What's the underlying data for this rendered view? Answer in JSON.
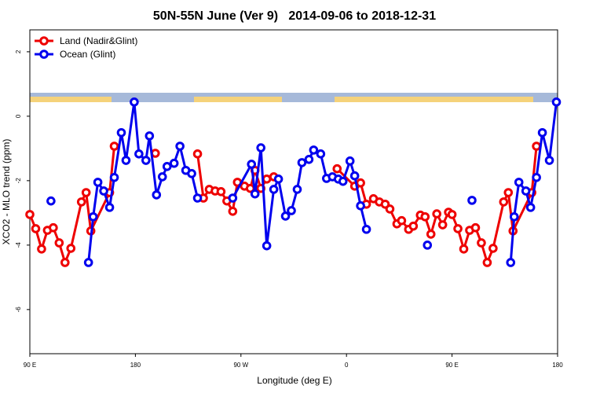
{
  "chart_data": {
    "type": "line",
    "title": "50N-55N June (Ver 9)   2014-09-06 to 2018-12-31",
    "x_label": "Longitude (deg E)",
    "y_label": "XCO2 - MLO trend (ppm)",
    "xlim": [
      90,
      540
    ],
    "ylim": [
      -7.37,
      2.68
    ],
    "xticks": [
      {
        "value": 90,
        "label": "90 E"
      },
      180,
      {
        "value": 270,
        "label": "90 W"
      },
      {
        "value": 360,
        "label": "0"
      },
      {
        "value": 450,
        "label": "90 E"
      },
      {
        "value": 540,
        "label": "180"
      }
    ],
    "yticks": [
      2,
      0,
      -2,
      -4,
      -6
    ],
    "legend": "top-left",
    "series": [
      {
        "name": "Land (Nadir&Glint)",
        "color": "#ee0000",
        "x": [
          90,
          95,
          100,
          105,
          110,
          115,
          120,
          125,
          134,
          138,
          142,
          158,
          162,
          null,
          197,
          null,
          233,
          238,
          243,
          248,
          253,
          258,
          263,
          267,
          273,
          278,
          282,
          287,
          292,
          298,
          null,
          352,
          367,
          372,
          377,
          383,
          388,
          393,
          397,
          403,
          407,
          413,
          417,
          423,
          427,
          432,
          437,
          442,
          447,
          450,
          455,
          460,
          465,
          470,
          475,
          480,
          485,
          494,
          498,
          502,
          518,
          522
        ],
        "values": [
          -3.05,
          -3.49,
          -4.12,
          -3.54,
          -3.46,
          -3.93,
          -4.54,
          -4.1,
          -2.66,
          -2.37,
          -3.56,
          -2.37,
          -0.93,
          null,
          -1.15,
          null,
          -1.17,
          -2.54,
          -2.27,
          -2.32,
          -2.34,
          -2.63,
          -2.95,
          -2.05,
          -2.17,
          -2.24,
          -1.68,
          -2.24,
          -1.95,
          -1.88,
          null,
          -1.63,
          -2.17,
          -2.07,
          -2.73,
          -2.56,
          -2.66,
          -2.73,
          -2.88,
          -3.34,
          -3.24,
          -3.51,
          -3.41,
          -3.07,
          -3.12,
          -3.66,
          -3.03,
          -3.37,
          -2.98,
          -3.05,
          -3.49,
          -4.12,
          -3.54,
          -3.46,
          -3.93,
          -4.54,
          -4.1,
          -2.66,
          -2.37,
          -3.56,
          -2.37,
          -0.93
        ]
      },
      {
        "name": "Ocean (Glint)",
        "color": "#0000ee",
        "x": [
          108,
          null,
          140,
          144,
          148,
          153,
          158,
          162,
          168,
          172,
          179,
          183,
          189,
          192,
          198,
          203,
          207,
          213,
          218,
          223,
          228,
          233,
          null,
          263,
          279,
          282,
          287,
          292,
          298,
          302,
          308,
          313,
          318,
          322,
          328,
          332,
          338,
          343,
          348,
          353,
          357,
          363,
          367,
          372,
          377,
          null,
          429,
          null,
          467,
          null,
          500,
          503,
          507,
          513,
          517,
          522,
          527,
          533,
          539
        ],
        "values": [
          -2.63,
          null,
          -4.54,
          -3.12,
          -2.05,
          -2.32,
          -2.83,
          -1.9,
          -0.51,
          -1.37,
          0.44,
          -1.17,
          -1.37,
          -0.61,
          -2.44,
          -1.88,
          -1.56,
          -1.46,
          -0.93,
          -1.68,
          -1.78,
          -2.54,
          null,
          -2.54,
          -1.49,
          -2.41,
          -0.98,
          -4.02,
          -2.27,
          -1.95,
          -3.1,
          -2.93,
          -2.27,
          -1.44,
          -1.34,
          -1.05,
          -1.17,
          -1.93,
          -1.88,
          -1.95,
          -2.02,
          -1.39,
          -1.85,
          -2.78,
          -3.51,
          null,
          -4.0,
          null,
          -2.61,
          null,
          -4.54,
          -3.12,
          -2.05,
          -2.32,
          -2.83,
          -1.9,
          -0.51,
          -1.37,
          0.44
        ]
      }
    ]
  }
}
